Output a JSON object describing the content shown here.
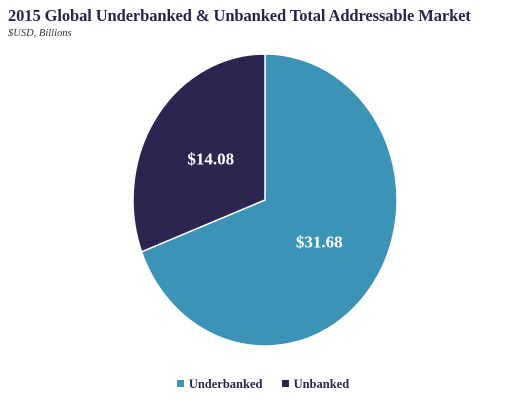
{
  "chart_data": {
    "type": "pie",
    "title": "2015 Global Underbanked & Unbanked Total Addressable Market",
    "subtitle": "$USD, Billions",
    "categories": [
      "Underbanked",
      "Unbanked"
    ],
    "values": [
      31.68,
      14.08
    ],
    "data_labels": [
      "$31.68",
      "$14.08"
    ],
    "colors": [
      "#3b93b7",
      "#2b2550"
    ],
    "legend_position": "bottom",
    "start_angle_deg": 0,
    "direction": "clockwise"
  }
}
